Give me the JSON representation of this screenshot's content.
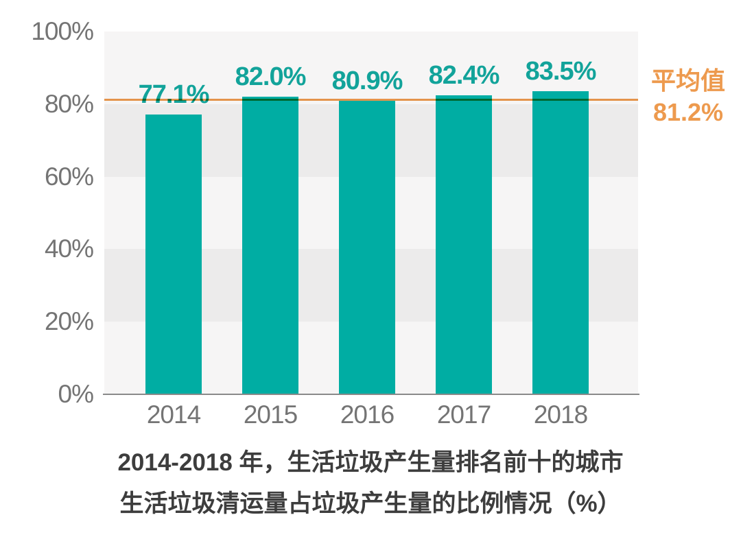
{
  "chart_data": {
    "type": "bar",
    "categories": [
      "2014",
      "2015",
      "2016",
      "2017",
      "2018"
    ],
    "values": [
      77.1,
      82.0,
      80.9,
      82.4,
      83.5
    ],
    "value_labels": [
      "77.1%",
      "82.0%",
      "80.9%",
      "82.4%",
      "83.5%"
    ],
    "average": {
      "label": "平均值",
      "value": 81.2,
      "value_label": "81.2%"
    },
    "y_axis": {
      "min": 0,
      "max": 100,
      "ticks": [
        0,
        20,
        40,
        60,
        80,
        100
      ],
      "tick_labels": [
        "0%",
        "20%",
        "40%",
        "60%",
        "80%",
        "100%"
      ]
    },
    "title_lines": [
      "2014-2018 年，生活垃圾产生量排名前十的城市",
      "生活垃圾清运量占垃圾产生量的比例情况（%）"
    ],
    "legend": "none",
    "grid": "alternating-horizontal-bands",
    "colors": {
      "bar": "#00ADA3",
      "value_label": "#12A39A",
      "average_line": "#ED9A4E",
      "average_text": "#ED9A4E",
      "tick_text": "#747474",
      "title_text": "#3D3D3D",
      "axis_line": "#8A8A8A",
      "band_light": "#F6F5F5",
      "band_dark": "#ECEBEB",
      "background": "#FFFFFF"
    }
  }
}
